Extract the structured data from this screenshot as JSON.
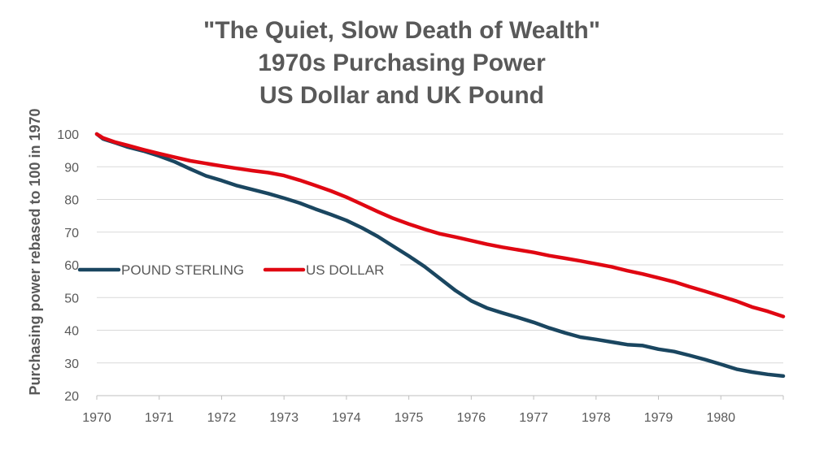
{
  "chart_data": {
    "type": "line",
    "title_lines": [
      "\"The Quiet, Slow Death of Wealth\"",
      "1970s Purchasing Power",
      "US Dollar and UK Pound"
    ],
    "xlabel": "",
    "ylabel": "Purchasing power rebased to 100 in 1970",
    "xlim": [
      1970,
      1981
    ],
    "ylim": [
      20,
      100
    ],
    "yticks": [
      20,
      30,
      40,
      50,
      60,
      70,
      80,
      90,
      100
    ],
    "xticks": [
      "1970",
      "1971",
      "1972",
      "1973",
      "1974",
      "1975",
      "1976",
      "1977",
      "1978",
      "1979",
      "1980"
    ],
    "grid": true,
    "legend_position": "middle-left",
    "series": [
      {
        "name": "POUND STERLING",
        "color": "#1a4660",
        "x": [
          1970,
          1970.1,
          1970.3,
          1970.5,
          1970.75,
          1971,
          1971.25,
          1971.5,
          1971.75,
          1972,
          1972.25,
          1972.5,
          1972.75,
          1973,
          1973.25,
          1973.5,
          1973.75,
          1974,
          1974.25,
          1974.5,
          1974.75,
          1975,
          1975.25,
          1975.5,
          1975.75,
          1976,
          1976.25,
          1976.5,
          1976.75,
          1977,
          1977.25,
          1977.5,
          1977.75,
          1978,
          1978.25,
          1978.5,
          1978.75,
          1979,
          1979.25,
          1979.5,
          1979.75,
          1980,
          1980.25,
          1980.5,
          1980.75,
          1981
        ],
        "values": [
          100,
          98.5,
          97.3,
          96,
          94.8,
          93.3,
          91.5,
          89.3,
          87.2,
          85.8,
          84.2,
          83,
          81.8,
          80.4,
          78.9,
          77.1,
          75.4,
          73.6,
          71.3,
          68.7,
          65.7,
          62.7,
          59.5,
          55.8,
          52.1,
          49,
          46.8,
          45.3,
          43.9,
          42.4,
          40.7,
          39.2,
          37.9,
          37.2,
          36.4,
          35.6,
          35.3,
          34.2,
          33.5,
          32.3,
          31,
          29.6,
          28.1,
          27.2,
          26.5,
          26
        ]
      },
      {
        "name": "US DOLLAR",
        "color": "#e00712",
        "x": [
          1970,
          1970.1,
          1970.3,
          1970.5,
          1970.75,
          1971,
          1971.25,
          1971.5,
          1971.75,
          1972,
          1972.25,
          1972.5,
          1972.75,
          1973,
          1973.25,
          1973.5,
          1973.75,
          1974,
          1974.25,
          1974.5,
          1974.75,
          1975,
          1975.25,
          1975.5,
          1975.75,
          1976,
          1976.25,
          1976.5,
          1976.75,
          1977,
          1977.25,
          1977.5,
          1977.75,
          1978,
          1978.25,
          1978.5,
          1978.75,
          1979,
          1979.25,
          1979.5,
          1979.75,
          1980,
          1980.25,
          1980.5,
          1980.75,
          1981
        ],
        "values": [
          100,
          98.8,
          97.5,
          96.5,
          95.2,
          94,
          92.9,
          91.8,
          91,
          90.2,
          89.5,
          88.8,
          88.2,
          87.3,
          85.9,
          84.3,
          82.6,
          80.7,
          78.5,
          76.3,
          74.2,
          72.5,
          70.9,
          69.5,
          68.5,
          67.4,
          66.3,
          65.4,
          64.6,
          63.8,
          62.8,
          62,
          61.2,
          60.3,
          59.4,
          58.2,
          57.2,
          56,
          54.8,
          53.3,
          51.9,
          50.4,
          48.9,
          47.1,
          45.8,
          44.2
        ]
      }
    ]
  }
}
